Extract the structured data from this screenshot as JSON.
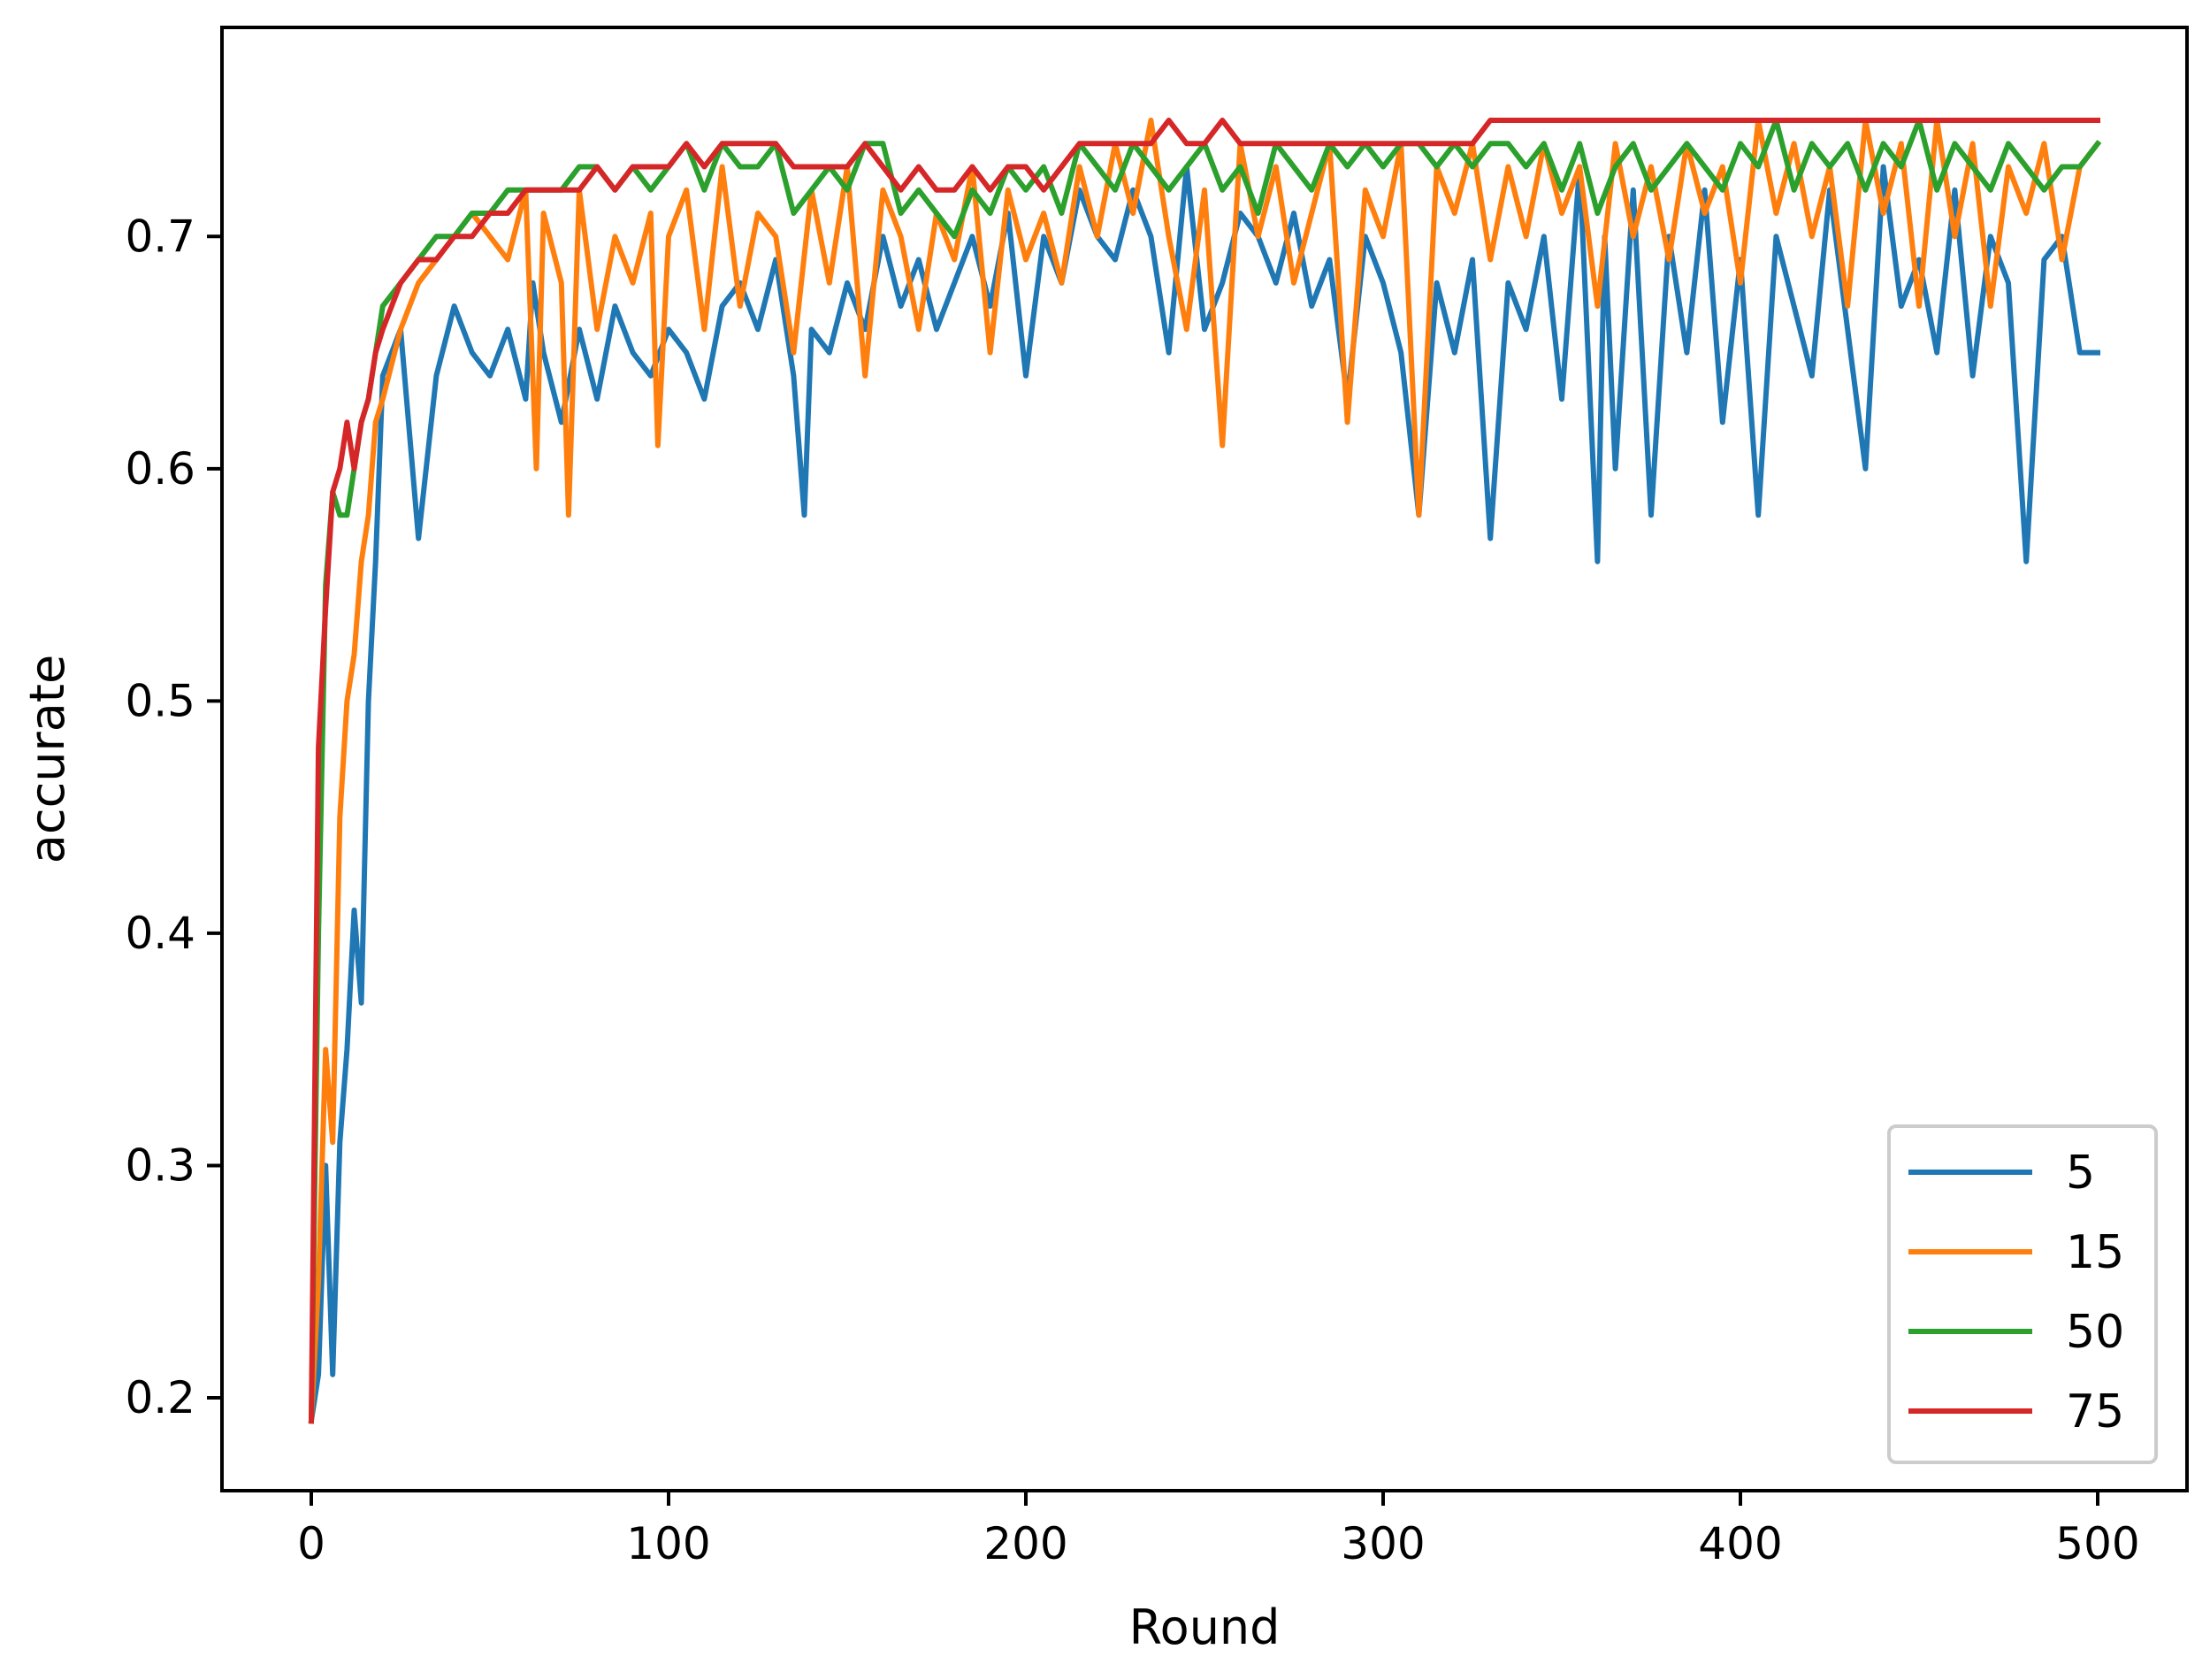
{
  "chart_data": {
    "type": "line",
    "title": "",
    "xlabel": "Round",
    "ylabel": "accurate",
    "xlim": [
      -25,
      525
    ],
    "ylim": [
      0.16,
      0.79
    ],
    "xticks": [
      0,
      100,
      200,
      300,
      400,
      500
    ],
    "yticks": [
      0.2,
      0.3,
      0.4,
      0.5,
      0.6,
      0.7
    ],
    "xtick_labels": [
      "0",
      "100",
      "200",
      "300",
      "400",
      "500"
    ],
    "ytick_labels": [
      "0.2",
      "0.3",
      "0.4",
      "0.5",
      "0.6",
      "0.7"
    ],
    "grid": false,
    "legend_position": "bottom-right",
    "series": [
      {
        "name": "5",
        "color": "#1f77b4",
        "x": [
          0,
          2,
          4,
          6,
          8,
          10,
          12,
          14,
          16,
          18,
          20,
          25,
          30,
          35,
          40,
          45,
          50,
          55,
          60,
          62,
          65,
          70,
          75,
          80,
          85,
          90,
          95,
          100,
          105,
          110,
          115,
          120,
          125,
          130,
          135,
          138,
          140,
          145,
          150,
          155,
          160,
          165,
          170,
          175,
          180,
          185,
          190,
          195,
          200,
          205,
          210,
          215,
          220,
          225,
          230,
          235,
          240,
          245,
          250,
          255,
          260,
          265,
          270,
          275,
          280,
          285,
          290,
          295,
          300,
          305,
          310,
          315,
          320,
          325,
          330,
          335,
          340,
          345,
          350,
          355,
          360,
          362,
          365,
          370,
          375,
          380,
          385,
          390,
          395,
          400,
          405,
          410,
          415,
          420,
          425,
          430,
          435,
          440,
          445,
          450,
          455,
          460,
          465,
          470,
          475,
          480,
          485,
          490,
          495,
          500
        ],
        "y": [
          0.19,
          0.21,
          0.3,
          0.21,
          0.31,
          0.35,
          0.41,
          0.37,
          0.5,
          0.56,
          0.64,
          0.66,
          0.57,
          0.64,
          0.67,
          0.65,
          0.64,
          0.66,
          0.63,
          0.68,
          0.65,
          0.62,
          0.66,
          0.63,
          0.67,
          0.65,
          0.64,
          0.66,
          0.65,
          0.63,
          0.67,
          0.68,
          0.66,
          0.69,
          0.64,
          0.58,
          0.66,
          0.65,
          0.68,
          0.66,
          0.7,
          0.67,
          0.69,
          0.66,
          0.68,
          0.7,
          0.67,
          0.71,
          0.64,
          0.7,
          0.68,
          0.72,
          0.7,
          0.69,
          0.72,
          0.7,
          0.65,
          0.73,
          0.66,
          0.68,
          0.71,
          0.7,
          0.68,
          0.71,
          0.67,
          0.69,
          0.63,
          0.7,
          0.68,
          0.65,
          0.58,
          0.68,
          0.65,
          0.69,
          0.57,
          0.68,
          0.66,
          0.7,
          0.63,
          0.73,
          0.56,
          0.7,
          0.6,
          0.72,
          0.58,
          0.7,
          0.65,
          0.72,
          0.62,
          0.69,
          0.58,
          0.7,
          0.67,
          0.64,
          0.72,
          0.66,
          0.6,
          0.73,
          0.67,
          0.69,
          0.65,
          0.72,
          0.64,
          0.7,
          0.68,
          0.56,
          0.69,
          0.7,
          0.65,
          0.65
        ]
      },
      {
        "name": "15",
        "color": "#ff7f0e",
        "x": [
          0,
          2,
          4,
          6,
          8,
          10,
          12,
          14,
          16,
          18,
          20,
          25,
          30,
          35,
          40,
          45,
          50,
          55,
          60,
          63,
          65,
          70,
          72,
          75,
          80,
          85,
          90,
          95,
          97,
          100,
          105,
          110,
          115,
          120,
          125,
          130,
          135,
          140,
          145,
          150,
          155,
          160,
          165,
          170,
          175,
          180,
          185,
          190,
          195,
          200,
          205,
          210,
          215,
          220,
          225,
          230,
          235,
          240,
          245,
          250,
          255,
          260,
          265,
          270,
          275,
          280,
          285,
          290,
          295,
          300,
          305,
          310,
          315,
          320,
          325,
          330,
          335,
          340,
          345,
          350,
          355,
          360,
          365,
          370,
          375,
          380,
          385,
          390,
          395,
          400,
          405,
          410,
          415,
          420,
          425,
          430,
          435,
          440,
          445,
          450,
          455,
          460,
          465,
          470,
          475,
          480,
          485,
          490,
          495,
          500
        ],
        "y": [
          0.19,
          0.25,
          0.35,
          0.31,
          0.45,
          0.5,
          0.52,
          0.56,
          0.58,
          0.62,
          0.63,
          0.66,
          0.68,
          0.69,
          0.7,
          0.71,
          0.7,
          0.69,
          0.72,
          0.6,
          0.71,
          0.68,
          0.58,
          0.72,
          0.66,
          0.7,
          0.68,
          0.71,
          0.61,
          0.7,
          0.72,
          0.66,
          0.73,
          0.67,
          0.71,
          0.7,
          0.65,
          0.72,
          0.68,
          0.73,
          0.64,
          0.72,
          0.7,
          0.66,
          0.71,
          0.69,
          0.73,
          0.65,
          0.72,
          0.69,
          0.71,
          0.68,
          0.73,
          0.7,
          0.74,
          0.71,
          0.75,
          0.7,
          0.66,
          0.72,
          0.61,
          0.74,
          0.7,
          0.73,
          0.68,
          0.71,
          0.74,
          0.62,
          0.72,
          0.7,
          0.74,
          0.58,
          0.73,
          0.71,
          0.74,
          0.69,
          0.73,
          0.7,
          0.74,
          0.71,
          0.73,
          0.67,
          0.74,
          0.7,
          0.73,
          0.69,
          0.74,
          0.71,
          0.73,
          0.68,
          0.75,
          0.71,
          0.74,
          0.7,
          0.73,
          0.67,
          0.75,
          0.71,
          0.74,
          0.67,
          0.75,
          0.7,
          0.74,
          0.67,
          0.73,
          0.71,
          0.74,
          0.69,
          0.73,
          0.74
        ]
      },
      {
        "name": "50",
        "color": "#2ca02c",
        "x": [
          0,
          2,
          4,
          6,
          8,
          10,
          12,
          14,
          16,
          18,
          20,
          25,
          30,
          35,
          40,
          45,
          50,
          55,
          60,
          65,
          70,
          75,
          80,
          85,
          90,
          95,
          100,
          105,
          110,
          115,
          120,
          125,
          130,
          135,
          140,
          145,
          150,
          155,
          160,
          165,
          170,
          175,
          180,
          185,
          190,
          195,
          200,
          205,
          210,
          215,
          220,
          225,
          230,
          235,
          240,
          245,
          250,
          255,
          260,
          265,
          270,
          275,
          280,
          285,
          290,
          295,
          300,
          305,
          310,
          315,
          320,
          325,
          330,
          335,
          340,
          345,
          350,
          355,
          360,
          365,
          370,
          375,
          380,
          385,
          390,
          395,
          400,
          405,
          410,
          415,
          420,
          425,
          430,
          435,
          440,
          445,
          450,
          455,
          460,
          465,
          470,
          475,
          480,
          485,
          490,
          495,
          500
        ],
        "y": [
          0.19,
          0.4,
          0.55,
          0.59,
          0.58,
          0.58,
          0.6,
          0.62,
          0.63,
          0.65,
          0.67,
          0.68,
          0.69,
          0.7,
          0.7,
          0.71,
          0.71,
          0.72,
          0.72,
          0.72,
          0.72,
          0.73,
          0.73,
          0.72,
          0.73,
          0.72,
          0.73,
          0.74,
          0.72,
          0.74,
          0.73,
          0.73,
          0.74,
          0.71,
          0.72,
          0.73,
          0.72,
          0.74,
          0.74,
          0.71,
          0.72,
          0.71,
          0.7,
          0.72,
          0.71,
          0.73,
          0.72,
          0.73,
          0.71,
          0.74,
          0.73,
          0.72,
          0.74,
          0.73,
          0.72,
          0.73,
          0.74,
          0.72,
          0.73,
          0.71,
          0.74,
          0.73,
          0.72,
          0.74,
          0.73,
          0.74,
          0.73,
          0.74,
          0.74,
          0.73,
          0.74,
          0.73,
          0.74,
          0.74,
          0.73,
          0.74,
          0.72,
          0.74,
          0.71,
          0.73,
          0.74,
          0.72,
          0.73,
          0.74,
          0.73,
          0.72,
          0.74,
          0.73,
          0.75,
          0.72,
          0.74,
          0.73,
          0.74,
          0.72,
          0.74,
          0.73,
          0.75,
          0.72,
          0.74,
          0.73,
          0.72,
          0.74,
          0.73,
          0.72,
          0.73,
          0.73,
          0.74
        ]
      },
      {
        "name": "75",
        "color": "#d62728",
        "x": [
          0,
          2,
          4,
          6,
          8,
          10,
          12,
          14,
          16,
          18,
          20,
          25,
          30,
          35,
          40,
          45,
          50,
          55,
          60,
          65,
          70,
          75,
          80,
          85,
          90,
          95,
          100,
          105,
          110,
          115,
          120,
          125,
          130,
          135,
          140,
          145,
          150,
          155,
          160,
          165,
          170,
          175,
          180,
          185,
          190,
          195,
          200,
          205,
          210,
          215,
          220,
          225,
          230,
          235,
          240,
          245,
          250,
          255,
          260,
          265,
          270,
          275,
          280,
          285,
          290,
          295,
          300,
          305,
          310,
          315,
          320,
          325,
          330,
          335,
          340,
          345,
          350,
          355,
          360,
          365,
          370,
          375,
          380,
          385,
          390,
          395,
          400,
          405,
          410,
          415,
          420,
          425,
          430,
          435,
          440,
          445,
          450,
          455,
          460,
          465,
          470,
          475,
          480,
          485,
          490,
          495,
          500
        ],
        "y": [
          0.19,
          0.48,
          0.54,
          0.59,
          0.6,
          0.62,
          0.6,
          0.62,
          0.63,
          0.65,
          0.66,
          0.68,
          0.69,
          0.69,
          0.7,
          0.7,
          0.71,
          0.71,
          0.72,
          0.72,
          0.72,
          0.72,
          0.73,
          0.72,
          0.73,
          0.73,
          0.73,
          0.74,
          0.73,
          0.74,
          0.74,
          0.74,
          0.74,
          0.73,
          0.73,
          0.73,
          0.73,
          0.74,
          0.73,
          0.72,
          0.73,
          0.72,
          0.72,
          0.73,
          0.72,
          0.73,
          0.73,
          0.72,
          0.73,
          0.74,
          0.74,
          0.74,
          0.74,
          0.74,
          0.75,
          0.74,
          0.74,
          0.75,
          0.74,
          0.74,
          0.74,
          0.74,
          0.74,
          0.74,
          0.74,
          0.74,
          0.74,
          0.74,
          0.74,
          0.74,
          0.74,
          0.74,
          0.75,
          0.75,
          0.75,
          0.75,
          0.75,
          0.75,
          0.75,
          0.75,
          0.75,
          0.75,
          0.75,
          0.75,
          0.75,
          0.75,
          0.75,
          0.75,
          0.75,
          0.75,
          0.75,
          0.75,
          0.75,
          0.75,
          0.75,
          0.75,
          0.75,
          0.75,
          0.75,
          0.75,
          0.75,
          0.75,
          0.75,
          0.75,
          0.75,
          0.75,
          0.75
        ]
      }
    ]
  }
}
